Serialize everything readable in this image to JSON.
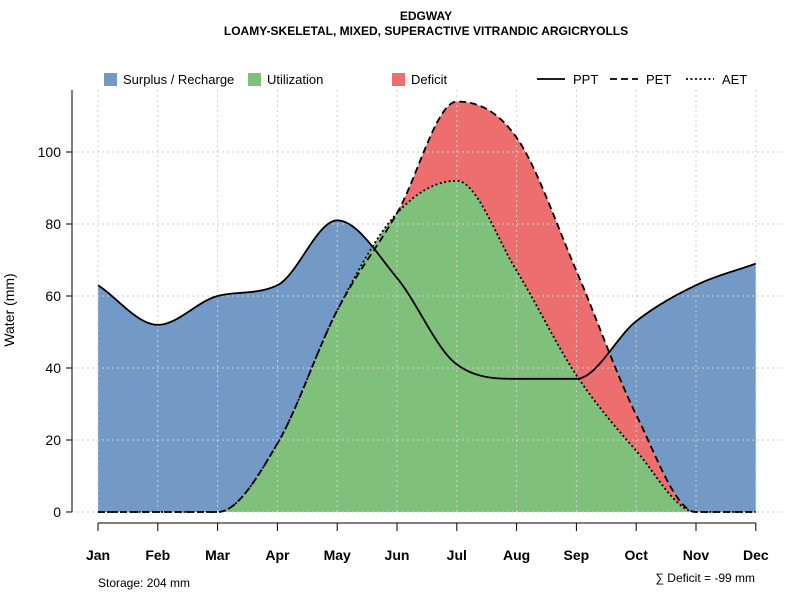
{
  "chart_data": {
    "type": "area",
    "title": "EDGWAY",
    "subtitle": "LOAMY-SKELETAL, MIXED, SUPERACTIVE VITRANDIC ARGICRYOLLS",
    "ylabel": "Water (mm)",
    "xlabel": "",
    "categories": [
      "Jan",
      "Feb",
      "Mar",
      "Apr",
      "May",
      "Jun",
      "Jul",
      "Aug",
      "Sep",
      "Oct",
      "Nov",
      "Dec"
    ],
    "ylim": [
      0,
      115
    ],
    "yticks": [
      "0",
      "20",
      "40",
      "60",
      "80",
      "100"
    ],
    "grid": true,
    "series": [
      {
        "name": "PPT",
        "style": "solid",
        "values": [
          63,
          52,
          60,
          63,
          81,
          65,
          41,
          37,
          37,
          53,
          63,
          69
        ]
      },
      {
        "name": "PET",
        "style": "dashed",
        "values": [
          0,
          0,
          0,
          19,
          56,
          83,
          114,
          104,
          67,
          27,
          0,
          0
        ]
      },
      {
        "name": "AET",
        "style": "dotted",
        "values": [
          0,
          0,
          0,
          19,
          56,
          83,
          92,
          67,
          38,
          17,
          0,
          0
        ]
      }
    ],
    "areas": [
      {
        "name": "Surplus / Recharge",
        "color": "#7399c6"
      },
      {
        "name": "Utilization",
        "color": "#7fc17b"
      },
      {
        "name": "Deficit",
        "color": "#ec6e6e"
      }
    ],
    "legend_lines": [
      "PPT",
      "PET",
      "AET"
    ],
    "legend_position": "top",
    "storage_text": "Storage: 204 mm",
    "deficit_text": "∑ Deficit = -99 mm"
  }
}
